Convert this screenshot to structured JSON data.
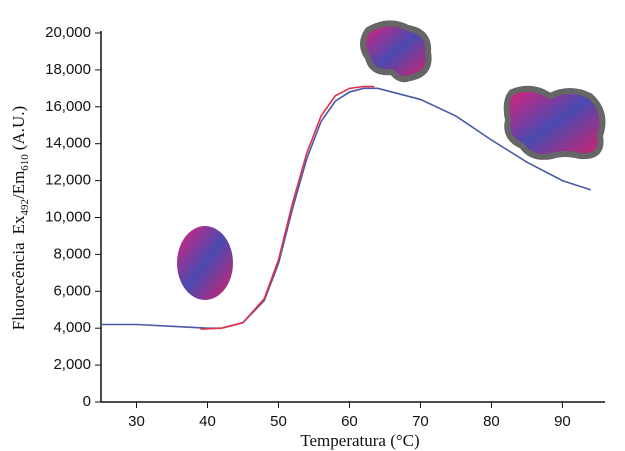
{
  "chart_data": {
    "type": "line",
    "y_label": {
      "main": "Fluorecência",
      "ex": "Ex",
      "ex_sub": "492",
      "em": "/Em",
      "em_sub": "610",
      "unit": "(A.U.)"
    },
    "x_label": "Temperatura (°C)",
    "xlim": [
      25,
      96
    ],
    "xticks": [
      30,
      40,
      50,
      60,
      70,
      80,
      90
    ],
    "ylim": [
      0,
      20000
    ],
    "yticks": [
      0,
      {
        "value": 2000,
        "label": "2,000"
      },
      {
        "value": 4000,
        "label": "4,000"
      },
      {
        "value": 6000,
        "label": "6,000"
      },
      {
        "value": 8000,
        "label": "8,000"
      },
      {
        "value": 10000,
        "label": "10,000"
      },
      {
        "value": 12000,
        "label": "12,000"
      },
      {
        "value": 14000,
        "label": "14,000"
      },
      {
        "value": 16000,
        "label": "16,000"
      },
      {
        "value": 18000,
        "label": "18,000"
      },
      {
        "value": 20000,
        "label": "20,000"
      }
    ],
    "series": [
      {
        "color": "#4a5aa8",
        "x": [
          25,
          30,
          35,
          40,
          42,
          45,
          48,
          50,
          52,
          54,
          56,
          58,
          60,
          62,
          64,
          66,
          70,
          75,
          80,
          85,
          90,
          94
        ],
        "values": [
          4200,
          4200,
          4100,
          4000,
          4000,
          4300,
          5500,
          7500,
          10500,
          13200,
          15200,
          16300,
          16800,
          17000,
          17000,
          16800,
          16400,
          15500,
          14200,
          13000,
          12000,
          11500
        ]
      },
      {
        "color": "#e0304a",
        "x": [
          39,
          42,
          45,
          48,
          50,
          52,
          54,
          56,
          58,
          60,
          62,
          63.5
        ],
        "values": [
          3950,
          4000,
          4300,
          5600,
          7700,
          10800,
          13500,
          15500,
          16600,
          17000,
          17100,
          17100
        ]
      }
    ]
  }
}
